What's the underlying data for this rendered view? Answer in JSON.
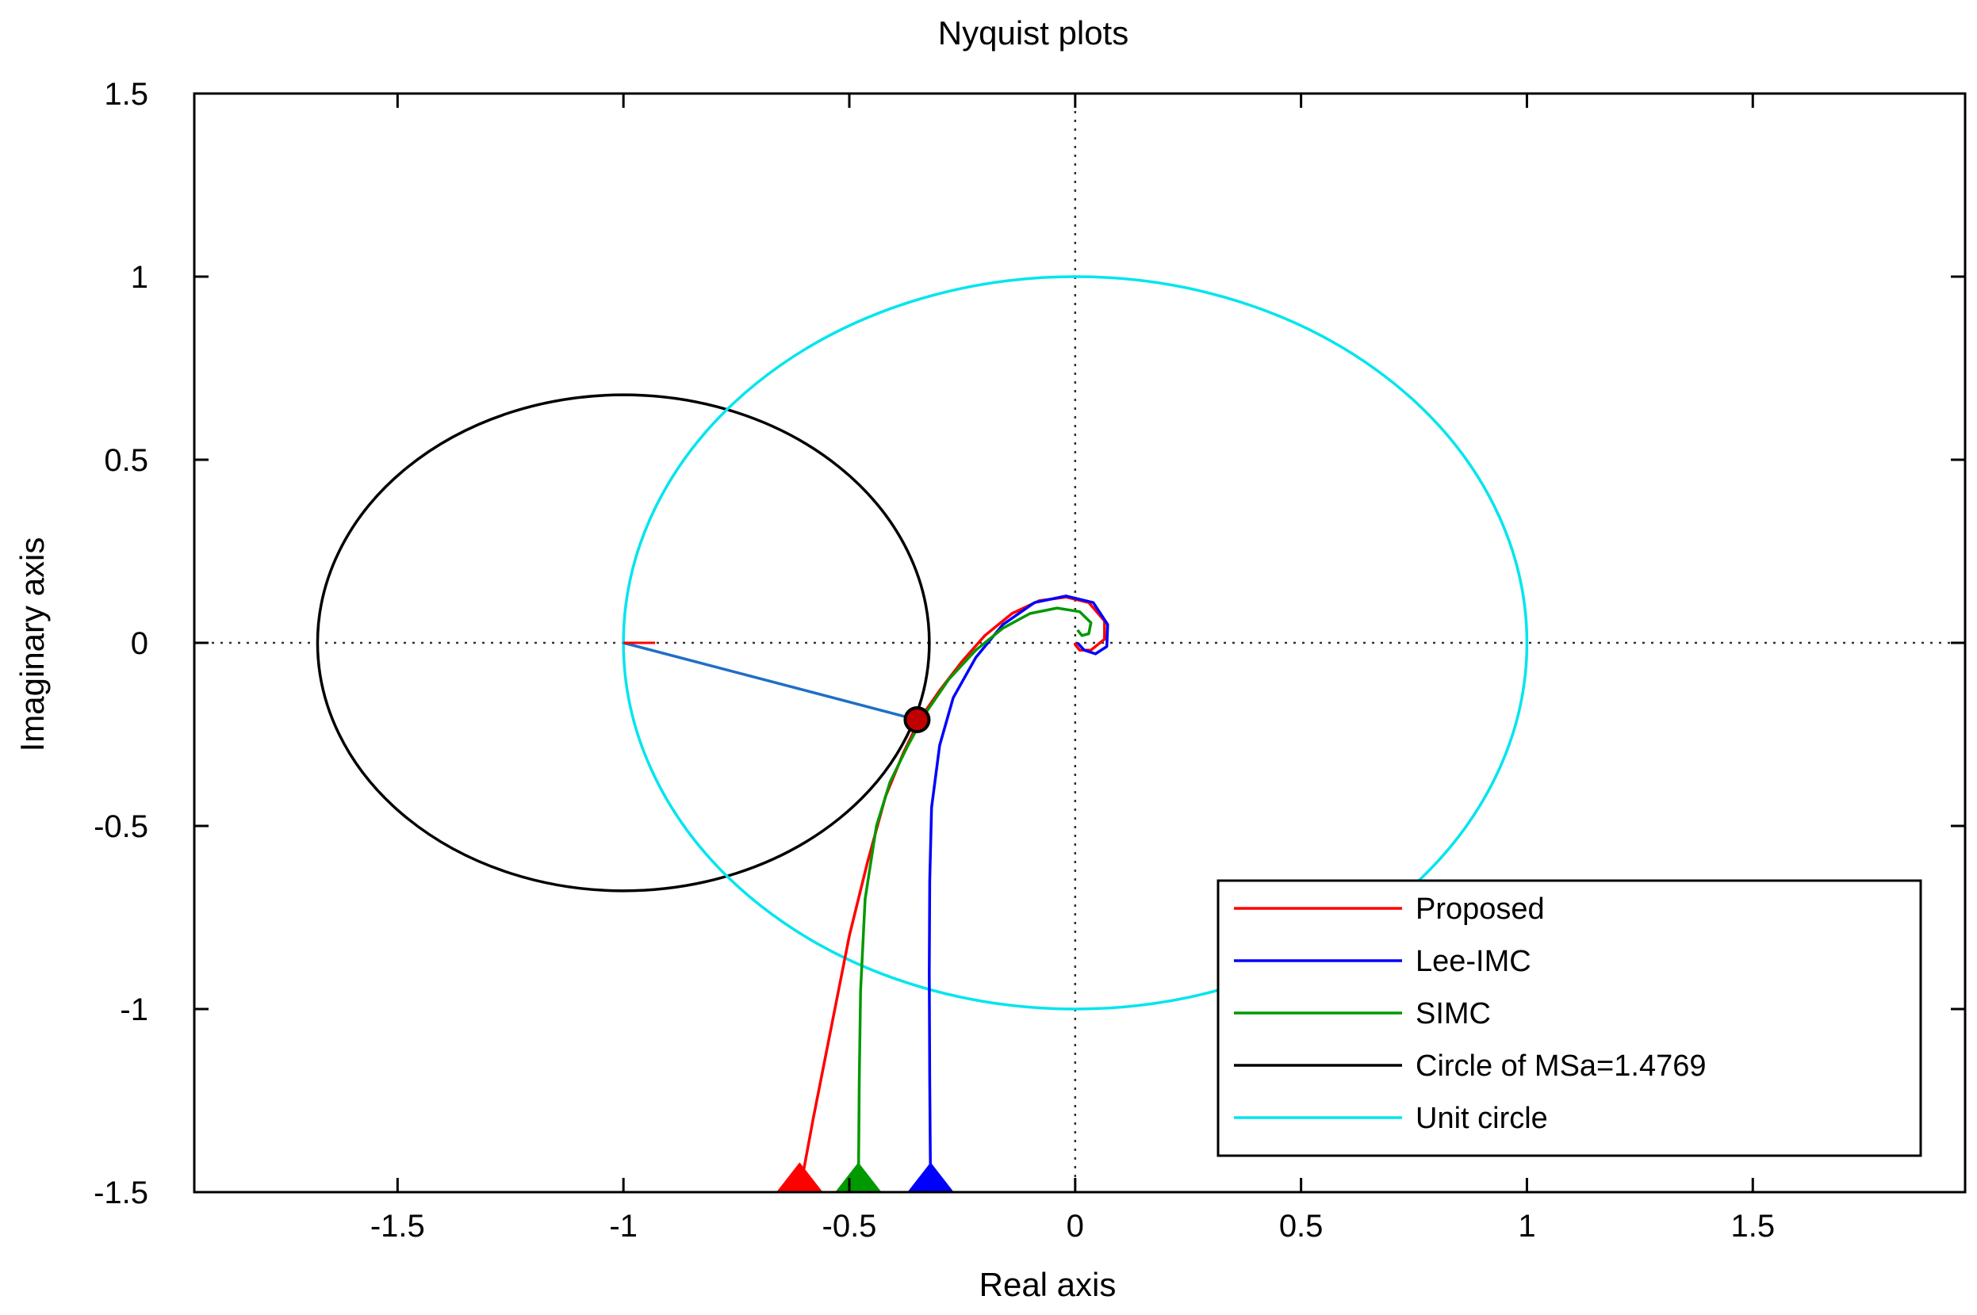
{
  "chart_data": {
    "type": "line",
    "title": "Nyquist plots",
    "xlabel": "Real axis",
    "ylabel": "Imaginary axis",
    "xlim": [
      -1.95,
      1.97
    ],
    "ylim": [
      -1.5,
      1.5
    ],
    "xticks": [
      -1.5,
      -1,
      -0.5,
      0,
      0.5,
      1,
      1.5
    ],
    "xtick_labels": [
      "-1.5",
      "-1",
      "-0.5",
      "0",
      "0.5",
      "1",
      "1.5"
    ],
    "yticks": [
      -1.5,
      -1,
      -0.5,
      0,
      0.5,
      1,
      1.5
    ],
    "ytick_labels": [
      "-1.5",
      "-1",
      "-0.5",
      "0",
      "0.5",
      "1",
      "1.5"
    ],
    "grid": false,
    "zero_lines": "dotted",
    "legend_position": "bottom-right",
    "series": [
      {
        "name": "Proposed",
        "color": "#ff0000",
        "points": [
          [
            -0.61,
            -1.5
          ],
          [
            -0.58,
            -1.3
          ],
          [
            -0.54,
            -1.05
          ],
          [
            -0.5,
            -0.8
          ],
          [
            -0.46,
            -0.6
          ],
          [
            -0.42,
            -0.42
          ],
          [
            -0.38,
            -0.3
          ],
          [
            -0.345,
            -0.21
          ],
          [
            -0.3,
            -0.13
          ],
          [
            -0.25,
            -0.05
          ],
          [
            -0.2,
            0.02
          ],
          [
            -0.14,
            0.08
          ],
          [
            -0.08,
            0.115
          ],
          [
            -0.02,
            0.125
          ],
          [
            0.03,
            0.11
          ],
          [
            0.065,
            0.06
          ],
          [
            0.065,
            0.01
          ],
          [
            0.035,
            -0.02
          ],
          [
            0.01,
            -0.02
          ],
          [
            0.0,
            -0.005
          ],
          [
            0.0,
            0.0
          ]
        ]
      },
      {
        "name": "Lee-IMC",
        "color": "#0000ff",
        "points": [
          [
            -0.32,
            -1.5
          ],
          [
            -0.322,
            -1.2
          ],
          [
            -0.323,
            -0.9
          ],
          [
            -0.322,
            -0.65
          ],
          [
            -0.318,
            -0.45
          ],
          [
            -0.3,
            -0.28
          ],
          [
            -0.27,
            -0.15
          ],
          [
            -0.22,
            -0.04
          ],
          [
            -0.16,
            0.05
          ],
          [
            -0.09,
            0.11
          ],
          [
            -0.02,
            0.128
          ],
          [
            0.04,
            0.11
          ],
          [
            0.072,
            0.05
          ],
          [
            0.07,
            -0.01
          ],
          [
            0.045,
            -0.03
          ],
          [
            0.02,
            -0.02
          ],
          [
            0.005,
            0.0
          ]
        ]
      },
      {
        "name": "SIMC",
        "color": "#009900",
        "points": [
          [
            -0.48,
            -1.5
          ],
          [
            -0.478,
            -1.2
          ],
          [
            -0.475,
            -0.95
          ],
          [
            -0.465,
            -0.7
          ],
          [
            -0.44,
            -0.5
          ],
          [
            -0.41,
            -0.38
          ],
          [
            -0.37,
            -0.28
          ],
          [
            -0.33,
            -0.19
          ],
          [
            -0.28,
            -0.1
          ],
          [
            -0.22,
            -0.02
          ],
          [
            -0.16,
            0.04
          ],
          [
            -0.1,
            0.08
          ],
          [
            -0.04,
            0.095
          ],
          [
            0.01,
            0.085
          ],
          [
            0.035,
            0.055
          ],
          [
            0.03,
            0.025
          ],
          [
            0.015,
            0.02
          ],
          [
            0.005,
            0.035
          ]
        ]
      },
      {
        "name": "Circle of MSa=1.4769",
        "color": "#000000",
        "center": [
          -1,
          0
        ],
        "radius": 0.6771
      },
      {
        "name": "Unit circle",
        "color": "#00e5ee",
        "center": [
          0,
          0
        ],
        "radius": 1
      }
    ],
    "annotations": [
      {
        "type": "line",
        "color": "#1f6fc5",
        "from": [
          -1,
          0
        ],
        "to": [
          -0.35,
          -0.21
        ]
      },
      {
        "type": "marker",
        "shape": "circle",
        "color": "#c00000",
        "at": [
          -0.35,
          -0.21
        ]
      },
      {
        "type": "arrow",
        "direction": "up",
        "color": "#ff0000",
        "at": [
          -0.61,
          -1.5
        ]
      },
      {
        "type": "arrow",
        "direction": "up",
        "color": "#009900",
        "at": [
          -0.48,
          -1.5
        ]
      },
      {
        "type": "arrow",
        "direction": "up",
        "color": "#0000ff",
        "at": [
          -0.32,
          -1.5
        ]
      }
    ]
  }
}
